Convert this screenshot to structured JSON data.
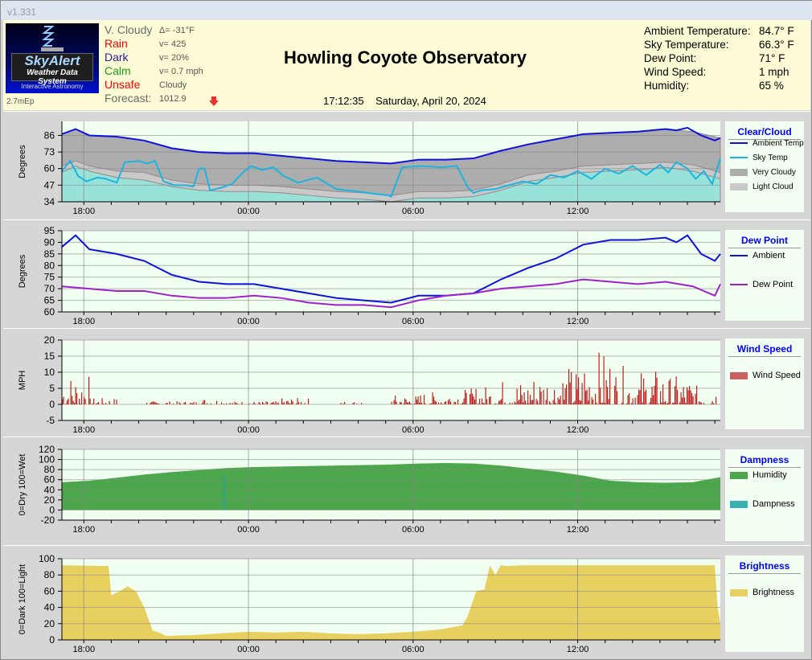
{
  "window": {
    "version": "v1.331"
  },
  "logo": {
    "brand": "SkyAlert",
    "line2": "Weather Data System",
    "line3": "Interactive Astronomy"
  },
  "status": {
    "build": "2.7mEp",
    "conditions": [
      {
        "label": "V. Cloudy",
        "color": "#6a6a6a",
        "value": "Δ= -31°F"
      },
      {
        "label": "Rain",
        "color": "#ff0000",
        "value": "v= 425"
      },
      {
        "label": "Dark",
        "color": "#2a1aa0",
        "value": "v= 20%"
      },
      {
        "label": "Calm",
        "color": "#1a9a1a",
        "value": "v= 0.7 mph"
      },
      {
        "label": "Unsafe",
        "color": "#ff0000",
        "value": "Cloudy"
      },
      {
        "label": "Forecast:",
        "color": "#6a6a6a",
        "value": "1012.9"
      }
    ],
    "forecast_icon": "red-down-arrow-icon"
  },
  "title": "Howling Coyote Observatory",
  "clock": {
    "time": "17:12:35",
    "date": "Saturday, April 20, 2024"
  },
  "readings": [
    {
      "label": "Ambient Temperature:",
      "value": "84.7° F"
    },
    {
      "label": "Sky Temperature:",
      "value": "66.3° F"
    },
    {
      "label": "Dew Point:",
      "value": "71° F"
    },
    {
      "label": "Wind Speed:",
      "value": "1 mph"
    },
    {
      "label": "Humidity:",
      "value": "65 %"
    }
  ],
  "chart_data": [
    {
      "type": "area",
      "title": "Clear/Cloud",
      "ylabel": "Degrees",
      "ylim": [
        34,
        97
      ],
      "yticks": [
        34,
        47,
        60,
        73,
        86
      ],
      "xlim": [
        17.2,
        41.2
      ],
      "xticks": [
        {
          "h": 18,
          "label": "18:00"
        },
        {
          "h": 24,
          "label": "00:00"
        },
        {
          "h": 30,
          "label": "06:00"
        },
        {
          "h": 36,
          "label": "12:00"
        }
      ],
      "series": [
        {
          "name": "Very Cloudy",
          "kind": "fill",
          "color": "#adadad",
          "x": [
            17.2,
            17.7,
            18.2,
            19.2,
            20.2,
            21.2,
            22.2,
            23.2,
            24.2,
            25.2,
            26.2,
            27.2,
            28.2,
            29.2,
            30.2,
            31.2,
            32.2,
            33.2,
            34.2,
            35.2,
            36.2,
            37.2,
            38.2,
            39.2,
            40.2,
            41.2
          ],
          "y": [
            87,
            91,
            86,
            85,
            82,
            76,
            73,
            72,
            72,
            70,
            68,
            66,
            65,
            64,
            67,
            67,
            68,
            74,
            79,
            83,
            87,
            88,
            89,
            91,
            89,
            84
          ]
        },
        {
          "name": "Light Cloud",
          "kind": "fill",
          "color": "#c9c9c9",
          "x": [
            17.2,
            17.7,
            18.2,
            19.2,
            20.2,
            21.2,
            22.2,
            23.2,
            24.2,
            25.2,
            26.2,
            27.2,
            28.2,
            29.2,
            30.2,
            31.2,
            32.2,
            33.2,
            34.2,
            35.2,
            36.2,
            37.2,
            38.2,
            39.2,
            40.2,
            41.2
          ],
          "y": [
            62,
            66,
            62,
            58,
            57,
            51,
            48,
            47,
            47,
            46,
            44,
            42,
            41,
            39,
            42,
            42,
            43,
            48,
            55,
            58,
            62,
            63,
            64,
            65,
            63,
            57
          ]
        },
        {
          "name": "Clear",
          "kind": "fill",
          "color": "#99e2da",
          "x": [
            17.2,
            17.7,
            18.2,
            19.2,
            20.2,
            21.2,
            22.2,
            23.2,
            24.2,
            25.2,
            26.2,
            27.2,
            28.2,
            29.2,
            30.2,
            31.2,
            32.2,
            33.2,
            34.2,
            35.2,
            36.2,
            37.2,
            38.2,
            39.2,
            40.2,
            41.2
          ],
          "y": [
            57,
            62,
            58,
            53,
            51,
            46,
            43,
            42,
            42,
            41,
            39,
            37,
            36,
            34,
            37,
            37,
            38,
            43,
            50,
            53,
            57,
            58,
            59,
            61,
            58,
            52
          ]
        },
        {
          "name": "Sky Temp",
          "kind": "line",
          "color": "#1ab4e0",
          "x": [
            17.2,
            17.5,
            17.8,
            18.1,
            18.5,
            18.8,
            19.2,
            19.5,
            20.0,
            20.3,
            20.6,
            20.9,
            21.3,
            21.7,
            22.0,
            22.2,
            22.4,
            22.6,
            23.0,
            23.4,
            23.8,
            24.1,
            24.5,
            24.9,
            25.3,
            25.8,
            26.5,
            27.2,
            28.0,
            28.7,
            29.1,
            29.2,
            29.6,
            30.3,
            31.0,
            31.6,
            32.0,
            32.2,
            32.5,
            33.0,
            33.5,
            34.0,
            34.5,
            35.0,
            35.5,
            36.0,
            36.5,
            37.0,
            37.5,
            38.0,
            38.5,
            39.0,
            39.3,
            39.6,
            40.0,
            40.3,
            40.6,
            40.9,
            41.2
          ],
          "y": [
            58,
            66,
            54,
            50,
            53,
            52,
            49,
            65,
            66,
            64,
            66,
            50,
            47,
            47,
            46,
            60,
            60,
            43,
            45,
            48,
            57,
            62,
            59,
            61,
            54,
            49,
            53,
            44,
            42,
            40,
            39,
            38,
            61,
            62,
            61,
            62,
            45,
            41,
            43,
            44,
            47,
            50,
            48,
            55,
            53,
            58,
            52,
            60,
            56,
            62,
            55,
            63,
            57,
            65,
            60,
            52,
            58,
            48,
            68
          ]
        },
        {
          "name": "Ambient Temp",
          "kind": "line",
          "color": "#1010e0",
          "x": [
            17.2,
            17.7,
            18.2,
            19.2,
            20.2,
            21.2,
            22.2,
            23.2,
            24.2,
            25.2,
            26.2,
            27.2,
            28.2,
            29.2,
            30.2,
            31.2,
            32.2,
            33.2,
            34.2,
            35.2,
            36.2,
            37.2,
            38.2,
            39.2,
            39.6,
            40.0,
            40.5,
            41.0,
            41.2
          ],
          "y": [
            87,
            91,
            86,
            85,
            82,
            76,
            73,
            72,
            72,
            70,
            68,
            66,
            65,
            64,
            67,
            67,
            68,
            74,
            79,
            83,
            87,
            88,
            89,
            91,
            90,
            92,
            86,
            82,
            84
          ]
        }
      ],
      "legend": [
        {
          "label": "Ambient Temp",
          "kind": "line",
          "color": "#1010e0"
        },
        {
          "label": "Sky Temp",
          "kind": "line",
          "color": "#1ab4e0"
        },
        {
          "label": "Very Cloudy",
          "kind": "box",
          "color": "#adadad"
        },
        {
          "label": "Light Cloud",
          "kind": "box",
          "color": "#c9c9c9"
        }
      ]
    },
    {
      "type": "line",
      "title": "Dew Point",
      "ylabel": "Degrees",
      "ylim": [
        60,
        95
      ],
      "yticks": [
        60,
        65,
        70,
        75,
        80,
        85,
        90,
        95
      ],
      "xlim": [
        17.2,
        41.2
      ],
      "xticks": [
        {
          "h": 18,
          "label": "18:00"
        },
        {
          "h": 24,
          "label": "00:00"
        },
        {
          "h": 30,
          "label": "06:00"
        },
        {
          "h": 36,
          "label": "12:00"
        }
      ],
      "series": [
        {
          "name": "Ambient",
          "kind": "line",
          "color": "#1010e0",
          "x": [
            17.2,
            17.7,
            18.2,
            19.2,
            20.2,
            21.2,
            22.2,
            23.2,
            24.2,
            25.2,
            26.2,
            27.2,
            28.2,
            29.2,
            30.2,
            31.2,
            32.2,
            33.2,
            34.2,
            35.2,
            36.2,
            37.2,
            38.2,
            39.2,
            39.6,
            40.0,
            40.5,
            41.0,
            41.2
          ],
          "y": [
            88,
            93,
            87,
            85,
            82,
            76,
            73,
            72,
            72,
            70,
            68,
            66,
            65,
            64,
            67,
            67,
            68,
            74,
            79,
            83,
            89,
            91,
            91,
            92,
            90,
            93,
            85,
            82,
            85
          ]
        },
        {
          "name": "Dew Point",
          "kind": "line",
          "color": "#a020d0",
          "x": [
            17.2,
            18.2,
            19.2,
            20.2,
            21.2,
            22.2,
            23.2,
            24.2,
            25.2,
            26.2,
            27.2,
            28.2,
            29.2,
            30.2,
            31.2,
            32.2,
            33.2,
            34.2,
            35.2,
            36.2,
            37.2,
            38.2,
            39.2,
            40.2,
            41.0,
            41.2
          ],
          "y": [
            71,
            70,
            69,
            69,
            67,
            66,
            66,
            67,
            66,
            64,
            63,
            63,
            62,
            65,
            67,
            68,
            70,
            71,
            72,
            74,
            73,
            72,
            73,
            71,
            67,
            72
          ]
        }
      ],
      "legend": [
        {
          "label": "Ambient",
          "kind": "line",
          "color": "#1010e0"
        },
        {
          "label": "Dew Point",
          "kind": "line",
          "color": "#a020d0"
        }
      ]
    },
    {
      "type": "bar",
      "title": "Wind Speed",
      "ylabel": "MPH",
      "ylim": [
        -5,
        20
      ],
      "yticks": [
        -5,
        0,
        5,
        10,
        15,
        20
      ],
      "xlim": [
        17.2,
        41.2
      ],
      "xticks": [
        {
          "h": 18,
          "label": "18:00"
        },
        {
          "h": 24,
          "label": "00:00"
        },
        {
          "h": 30,
          "label": "06:00"
        },
        {
          "h": 36,
          "label": "12:00"
        }
      ],
      "hourly_max_mph": [
        10,
        2,
        0,
        1,
        1,
        2,
        1,
        1,
        2,
        0,
        1,
        0,
        3,
        4,
        5,
        6,
        8,
        10,
        12,
        17,
        12,
        11,
        9,
        6
      ],
      "series": [
        {
          "name": "Wind Speed",
          "color": "#c02020"
        }
      ],
      "legend": [
        {
          "label": "Wind Speed",
          "kind": "box",
          "color": "#c86060"
        }
      ]
    },
    {
      "type": "area",
      "title": "Dampness",
      "ylabel": "0=Dry 100=Wet",
      "ylim": [
        -20,
        120
      ],
      "yticks": [
        -20,
        0,
        20,
        40,
        60,
        80,
        100,
        120
      ],
      "xlim": [
        17.2,
        41.2
      ],
      "xticks": [
        {
          "h": 18,
          "label": "18:00"
        },
        {
          "h": 24,
          "label": "00:00"
        },
        {
          "h": 30,
          "label": "06:00"
        },
        {
          "h": 36,
          "label": "12:00"
        }
      ],
      "series": [
        {
          "name": "Humidity",
          "kind": "fill",
          "color": "#4ca64c",
          "x": [
            17.2,
            18.2,
            19.2,
            20.2,
            21.2,
            22.2,
            23.2,
            24.2,
            25.2,
            26.2,
            27.2,
            28.2,
            29.2,
            30.2,
            31.2,
            32.2,
            33.2,
            34.2,
            35.2,
            36.2,
            37.2,
            38.2,
            39.2,
            40.2,
            41.2
          ],
          "y": [
            55,
            58,
            64,
            70,
            75,
            79,
            83,
            85,
            86,
            87,
            88,
            89,
            90,
            92,
            93,
            92,
            88,
            82,
            76,
            68,
            58,
            55,
            54,
            55,
            65
          ]
        },
        {
          "name": "Dampness",
          "kind": "spike",
          "color": "#20a0a0",
          "x": [
            23.1
          ],
          "y": [
            70
          ]
        }
      ],
      "legend": [
        {
          "label": "Humidity",
          "kind": "box",
          "color": "#4ca64c"
        },
        {
          "label": "Dampness",
          "kind": "box",
          "color": "#3cb0b0"
        }
      ]
    },
    {
      "type": "area",
      "title": "Brightness",
      "ylabel": "0=Dark 100=Light",
      "ylim": [
        0,
        100
      ],
      "yticks": [
        0,
        20,
        40,
        60,
        80,
        100
      ],
      "xlim": [
        17.2,
        41.2
      ],
      "xticks": [
        {
          "h": 18,
          "label": "18:00"
        },
        {
          "h": 24,
          "label": "00:00"
        },
        {
          "h": 30,
          "label": "06:00"
        },
        {
          "h": 36,
          "label": "12:00"
        }
      ],
      "series": [
        {
          "name": "Brightness",
          "kind": "fill",
          "color": "#e8d060",
          "x": [
            17.2,
            18.9,
            19.0,
            19.3,
            19.6,
            19.9,
            20.2,
            20.5,
            20.8,
            21.0,
            22.0,
            23.0,
            24.0,
            25.0,
            26.0,
            27.0,
            28.0,
            29.0,
            30.0,
            31.0,
            31.8,
            32.0,
            32.3,
            32.6,
            32.8,
            33.0,
            33.2,
            33.4,
            34.0,
            36.0,
            38.0,
            40.0,
            41.0,
            41.1,
            41.2
          ],
          "y": [
            92,
            91,
            55,
            60,
            66,
            60,
            40,
            12,
            8,
            5,
            6,
            8,
            10,
            9,
            10,
            8,
            7,
            8,
            10,
            13,
            18,
            30,
            60,
            62,
            92,
            80,
            92,
            91,
            92,
            92,
            92,
            92,
            92,
            40,
            20
          ]
        }
      ],
      "legend": [
        {
          "label": "Brightness",
          "kind": "box",
          "color": "#e8d060"
        }
      ]
    }
  ]
}
